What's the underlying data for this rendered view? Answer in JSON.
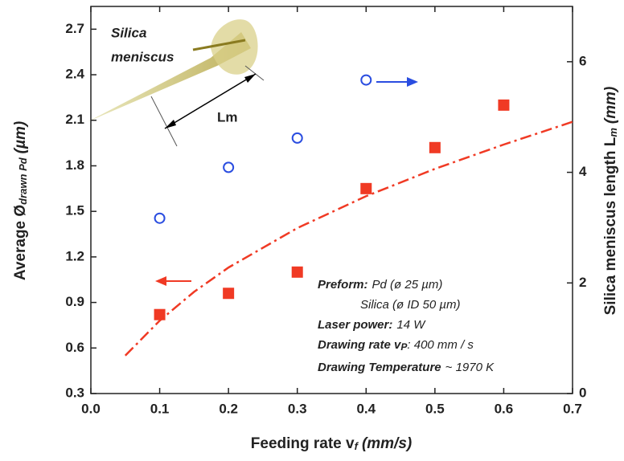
{
  "chart_data": {
    "type": "scatter",
    "x_label": {
      "text": "Feeding rate v",
      "sub": "f",
      "unit": "(mm/s)"
    },
    "y_label": {
      "text": "Average Ø",
      "sub": "drawn Pd",
      "unit": "(µm)"
    },
    "y2_label": {
      "text": "Silica meniscus length L",
      "sub": "m",
      "unit": "(mm)"
    },
    "xlim": [
      0,
      0.7
    ],
    "xticks": [
      {
        "value": 0,
        "label": "0.0"
      },
      0.1,
      0.2,
      0.3,
      0.4,
      0.5,
      0.6,
      0.7
    ],
    "ylim": [
      0.3,
      2.85
    ],
    "yticks": [
      0.3,
      0.6,
      0.9,
      1.2,
      1.5,
      1.8,
      2.1,
      2.4,
      2.7
    ],
    "y2lim": [
      0,
      7
    ],
    "y2ticks": [
      0,
      2,
      4,
      6
    ],
    "series": [
      {
        "marker": "square",
        "color": "#f03a24",
        "x": [
          0.1,
          0.2,
          0.3,
          0.4,
          0.5,
          0.6
        ],
        "values": [
          0.82,
          0.96,
          1.1,
          1.65,
          1.92,
          2.2
        ]
      },
      {
        "marker": "circle",
        "color": "#2a4de0",
        "axis": "y2",
        "x": [
          0.1,
          0.2,
          0.3,
          0.4
        ],
        "values": [
          3.17,
          4.09,
          4.62,
          5.67
        ]
      },
      {
        "marker": "dash-dot",
        "color": "#f03a24",
        "x": [
          0.05,
          0.1,
          0.15,
          0.2,
          0.3,
          0.4,
          0.5,
          0.6,
          0.7
        ],
        "values": [
          0.55,
          0.78,
          0.97,
          1.13,
          1.39,
          1.6,
          1.78,
          1.94,
          2.09
        ]
      }
    ],
    "inset": {
      "title_1": "Silica",
      "title_2": "meniscus",
      "dimension": "Lm"
    },
    "notes": [
      {
        "label": "Preform:",
        "value": "Pd (ø 25 µm)"
      },
      {
        "value": "Silica (ø ID 50 µm)"
      },
      {
        "label": "Laser power:",
        "value": "14 W"
      },
      {
        "label": "Drawing rate v",
        "sub": "P",
        "value": ": 400 mm / s"
      },
      {
        "label": "Drawing Temperature",
        "value": "~ 1970 K"
      }
    ]
  }
}
